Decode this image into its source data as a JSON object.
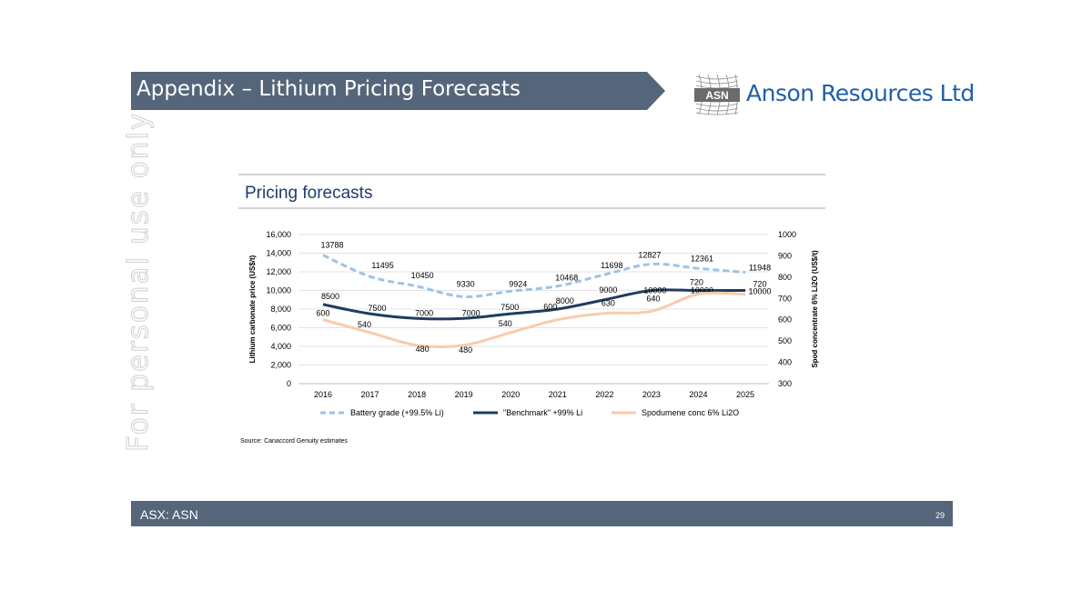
{
  "slide": {
    "title": "Appendix – Lithium Pricing Forecasts",
    "company_name": "Anson Resources Ltd",
    "logo_text": "ASN",
    "watermark": "For personal use only",
    "footer_ticker": "ASX: ASN",
    "page_number": "29",
    "colors": {
      "banner": "#55667a",
      "logo_blue": "#1f5fa8"
    }
  },
  "chart_data": {
    "type": "line",
    "title": "Pricing forecasts",
    "source": "Source: Canaccord Genuity estimates",
    "x": [
      "2016",
      "2017",
      "2018",
      "2019",
      "2020",
      "2021",
      "2022",
      "2023",
      "2024",
      "2025"
    ],
    "ylabel": "Lithium carbonate price (US$/t)",
    "y2label": "Spod concentrate 6% Li2O (US$/t)",
    "ylim": [
      0,
      16000
    ],
    "y2lim": [
      300,
      1000
    ],
    "yticks": [
      "0",
      "2,000",
      "4,000",
      "6,000",
      "8,000",
      "10,000",
      "12,000",
      "14,000",
      "16,000"
    ],
    "y2ticks": [
      "300",
      "400",
      "500",
      "600",
      "700",
      "800",
      "900",
      "1000"
    ],
    "legend_position": "bottom",
    "grid": true,
    "series": [
      {
        "name": "Battery grade (+99.5% Li)",
        "axis": "left",
        "color": "#9dc3e6",
        "dash": true,
        "values": [
          13788,
          11495,
          10450,
          9330,
          9924,
          10468,
          11698,
          12827,
          12361,
          11948
        ]
      },
      {
        "name": "\"Benchmark\" +99% Li",
        "axis": "left",
        "color": "#1f3d5c",
        "dash": false,
        "values": [
          8500,
          7500,
          7000,
          7000,
          7500,
          8000,
          9000,
          10000,
          10000,
          10000
        ]
      },
      {
        "name": "Spodumene conc 6% Li2O",
        "axis": "right",
        "color": "#f8cbad",
        "dash": false,
        "values": [
          600,
          540,
          480,
          480,
          540,
          600,
          630,
          640,
          720,
          720
        ]
      }
    ]
  }
}
